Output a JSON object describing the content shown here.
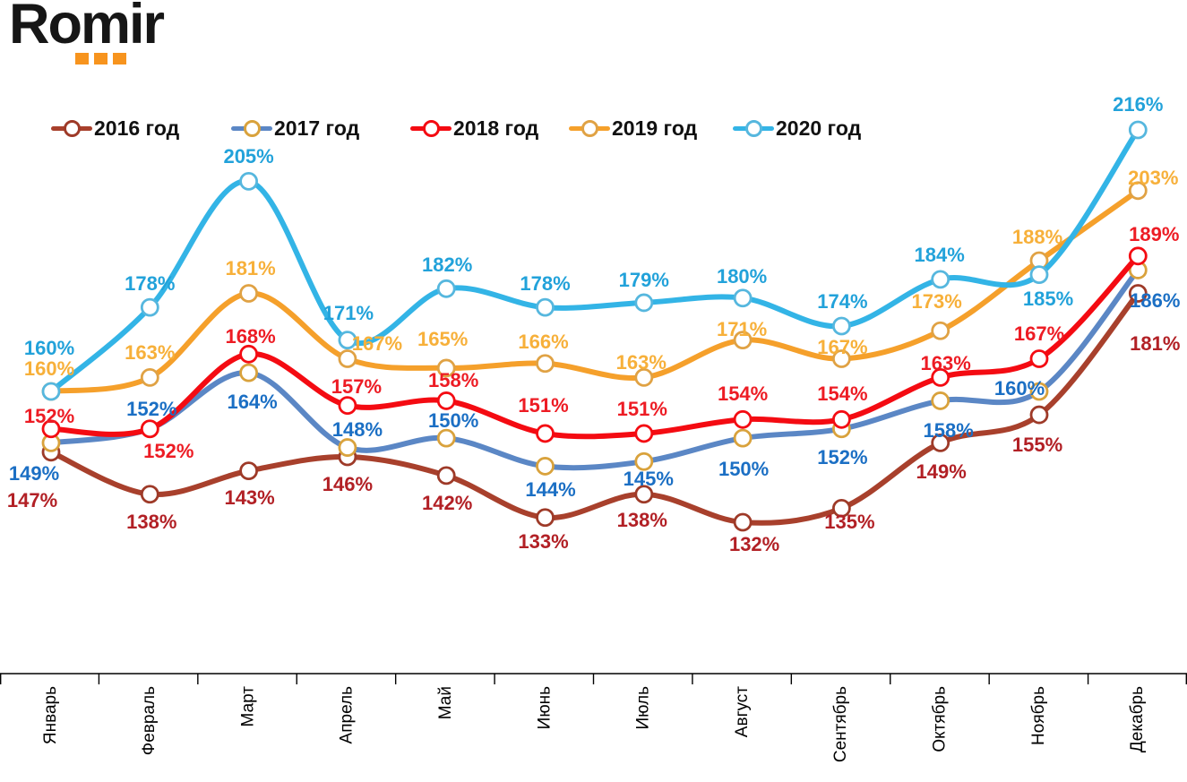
{
  "logo": {
    "text": "Romir",
    "dot_color": "#F7941E"
  },
  "chart_data": {
    "type": "line",
    "title": "",
    "unit": "%",
    "grid": false,
    "legend_position": "top",
    "ylim": [
      125,
      225
    ],
    "categories": [
      "Январь",
      "Февраль",
      "Март",
      "Апрель",
      "Май",
      "Июнь",
      "Июль",
      "Август",
      "Сентябрь",
      "Октябрь",
      "Ноябрь",
      "Декабрь"
    ],
    "series": [
      {
        "name": "2016 год",
        "line_color": "#A8402C",
        "marker_border_color": "#9E3A28",
        "label_color": "#B22025",
        "values": [
          147,
          138,
          143,
          146,
          142,
          133,
          138,
          132,
          135,
          149,
          155,
          181
        ],
        "label_offsets": [
          [
            -21,
            54
          ],
          [
            2,
            31
          ],
          [
            1,
            30
          ],
          [
            0,
            31
          ],
          [
            1,
            31
          ],
          [
            -2,
            27
          ],
          [
            -2,
            29
          ],
          [
            13,
            25
          ],
          [
            9,
            16
          ],
          [
            1,
            33
          ],
          [
            -2,
            34
          ],
          [
            19,
            56
          ]
        ]
      },
      {
        "name": "2017 год",
        "line_color": "#5B87C5",
        "marker_border_color": "#D9A23C",
        "label_color": "#1B6FC4",
        "values": [
          149,
          152,
          164,
          148,
          150,
          144,
          145,
          150,
          152,
          158,
          160,
          186
        ],
        "label_offsets": [
          [
            -19,
            35
          ],
          [
            2,
            -22
          ],
          [
            4,
            33
          ],
          [
            11,
            -20
          ],
          [
            8,
            -19
          ],
          [
            6,
            27
          ],
          [
            5,
            20
          ],
          [
            1,
            35
          ],
          [
            1,
            32
          ],
          [
            9,
            34
          ],
          [
            -22,
            -3
          ],
          [
            19,
            35
          ]
        ]
      },
      {
        "name": "2018 год",
        "line_color": "#F40B12",
        "marker_border_color": "#F40B12",
        "label_color": "#ED1C24",
        "values": [
          152,
          152,
          168,
          157,
          158,
          151,
          151,
          154,
          154,
          163,
          167,
          189
        ],
        "label_offsets": [
          [
            -2,
            -14
          ],
          [
            21,
            25
          ],
          [
            2,
            -19
          ],
          [
            10,
            -21
          ],
          [
            8,
            -22
          ],
          [
            -2,
            -31
          ],
          [
            -2,
            -27
          ],
          [
            0,
            -28
          ],
          [
            1,
            -28
          ],
          [
            6,
            -15
          ],
          [
            0,
            -28
          ],
          [
            18,
            -24
          ]
        ]
      },
      {
        "name": "2019 год",
        "line_color": "#F5A02B",
        "marker_border_color": "#E0A244",
        "label_color": "#F7B03A",
        "values": [
          160,
          163,
          181,
          167,
          165,
          166,
          163,
          171,
          167,
          173,
          188,
          203
        ],
        "label_offsets": [
          [
            -2,
            -25
          ],
          [
            0,
            -27
          ],
          [
            2,
            -28
          ],
          [
            33,
            -17
          ],
          [
            -4,
            -32
          ],
          [
            -2,
            -24
          ],
          [
            -3,
            -16
          ],
          [
            -1,
            -12
          ],
          [
            1,
            -13
          ],
          [
            -4,
            -32
          ],
          [
            -2,
            -26
          ],
          [
            17,
            -14
          ]
        ]
      },
      {
        "name": "2020 год",
        "line_color": "#33B4E6",
        "marker_border_color": "#56B7DE",
        "label_color": "#22A2DA",
        "values": [
          160,
          178,
          205,
          171,
          182,
          178,
          179,
          180,
          174,
          184,
          185,
          216
        ],
        "label_offsets": [
          [
            -2,
            -48
          ],
          [
            0,
            -26
          ],
          [
            0,
            -27
          ],
          [
            1,
            -30
          ],
          [
            1,
            -26
          ],
          [
            0,
            -26
          ],
          [
            0,
            -25
          ],
          [
            -1,
            -24
          ],
          [
            1,
            -27
          ],
          [
            -1,
            -27
          ],
          [
            10,
            27
          ],
          [
            0,
            -28
          ]
        ]
      }
    ]
  }
}
